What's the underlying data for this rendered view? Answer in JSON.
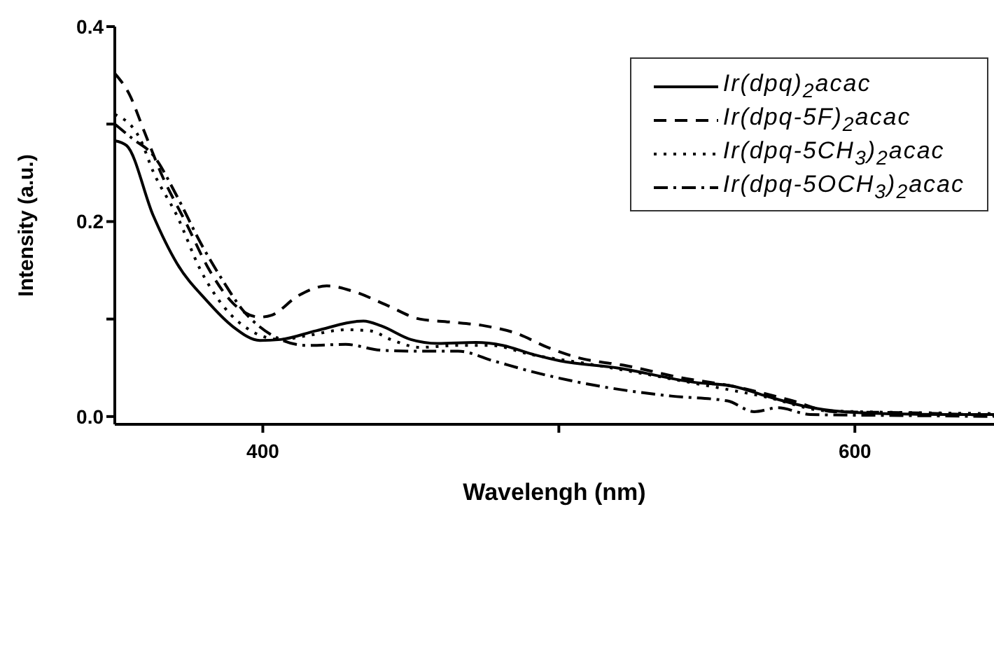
{
  "chart_data": {
    "type": "line",
    "xlabel": "Wavelengh (nm)",
    "ylabel": "Intensity (a.u.)",
    "xlim": [
      350,
      647
    ],
    "ylim": [
      -0.008,
      0.4
    ],
    "xticks": [
      400,
      {
        "value": 500,
        "label": null
      },
      600
    ],
    "yticks": [
      {
        "value": 0,
        "label": "0.0"
      },
      {
        "value": 0.1,
        "label": null
      },
      {
        "value": 0.2,
        "label": "0.2"
      },
      {
        "value": 0.3,
        "label": null
      },
      {
        "value": 0.4,
        "label": "0.4"
      }
    ],
    "grid": false,
    "legend": "top right",
    "marker": "none",
    "series": [
      {
        "name": "Ir(dpq)$_{2}$acac",
        "color": "#000000",
        "line_style": "solid",
        "x": [
          350,
          354,
          363,
          371,
          381,
          390,
          399,
          406,
          418,
          434,
          440,
          450,
          459,
          472,
          481,
          491,
          500.6,
          519.4,
          546,
          559,
          570,
          585.5,
          601,
          632,
          647
        ],
        "values": [
          0.283,
          0.278,
          0.206,
          0.157,
          0.119,
          0.092,
          0.078,
          0.079,
          0.088,
          0.098,
          0.093,
          0.079,
          0.075,
          0.076,
          0.073,
          0.064,
          0.057,
          0.05,
          0.035,
          0.031,
          0.021,
          0.009,
          0.004,
          0.002,
          0.002
        ]
      },
      {
        "name": "Ir(dpq-5F)$_{2}$acac",
        "color": "#000000",
        "line_style": "dashed",
        "x": [
          350,
          355,
          360,
          366,
          374,
          382,
          390,
          399,
          403,
          412,
          421.6,
          431,
          442,
          453,
          463,
          475,
          485,
          497,
          507,
          523,
          541,
          559,
          578,
          593,
          617,
          647
        ],
        "values": [
          0.352,
          0.33,
          0.292,
          0.247,
          0.199,
          0.15,
          0.116,
          0.102,
          0.104,
          0.124,
          0.134,
          0.128,
          0.114,
          0.1,
          0.097,
          0.093,
          0.086,
          0.07,
          0.06,
          0.052,
          0.04,
          0.031,
          0.017,
          0.005,
          0.004,
          0.001
        ]
      },
      {
        "name": "Ir(dpq-5CH$_{3}$)$_{2}$acac",
        "color": "#000000",
        "line_style": "dotted",
        "x": [
          350,
          358.5,
          363,
          371,
          379,
          387,
          396,
          406,
          415,
          428,
          436,
          444,
          453,
          466,
          477,
          490,
          510,
          546,
          570,
          590,
          620,
          647
        ],
        "values": [
          0.31,
          0.285,
          0.251,
          0.206,
          0.15,
          0.112,
          0.088,
          0.079,
          0.083,
          0.089,
          0.088,
          0.078,
          0.071,
          0.073,
          0.073,
          0.064,
          0.054,
          0.034,
          0.02,
          0.006,
          0.004,
          0.003
        ]
      },
      {
        "name": "Ir(dpq-5OCH$_{3}$)$_{2}$acac",
        "color": "#000000",
        "line_style": "dashdot",
        "x": [
          350,
          356,
          363,
          371,
          379,
          387,
          393,
          399,
          406,
          415,
          428,
          440,
          453,
          466,
          478,
          491,
          514,
          538,
          557,
          566,
          574,
          585,
          617,
          647
        ],
        "values": [
          0.3,
          0.285,
          0.268,
          0.226,
          0.178,
          0.137,
          0.11,
          0.092,
          0.079,
          0.073,
          0.074,
          0.068,
          0.067,
          0.067,
          0.057,
          0.046,
          0.031,
          0.021,
          0.016,
          0.005,
          0.009,
          0.002,
          0.001,
          0.0
        ]
      }
    ]
  }
}
